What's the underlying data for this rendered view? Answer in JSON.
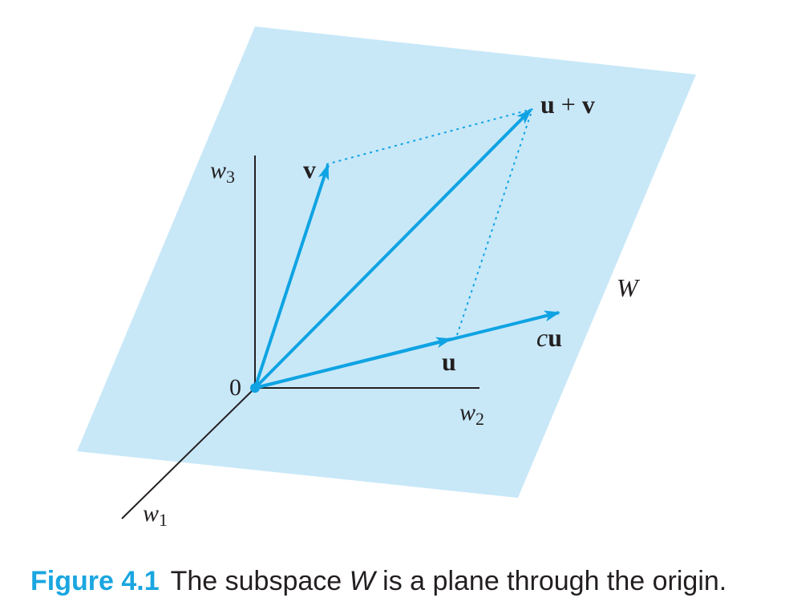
{
  "colors": {
    "plane_fill": "#c8e8f8",
    "vector": "#0fa3e3",
    "axis": "#231f20",
    "dotted": "#0fa3e3",
    "caption_accent": "#1aa6e0"
  },
  "labels": {
    "w1_base": "w",
    "w1_sub": "1",
    "w2_base": "w",
    "w2_sub": "2",
    "w3_base": "w",
    "w3_sub": "3",
    "origin": "0",
    "v": "v",
    "u": "u",
    "cu_scalar": "c",
    "cu_vec": "u",
    "u_plus_v_u": "u",
    "u_plus_v_op": "+",
    "u_plus_v_v": "v",
    "plane": "W"
  },
  "caption": {
    "figure_number": "Figure 4.1",
    "text_before": "The subspace ",
    "text_italic": "W",
    "text_after": " is a plane through the origin."
  }
}
